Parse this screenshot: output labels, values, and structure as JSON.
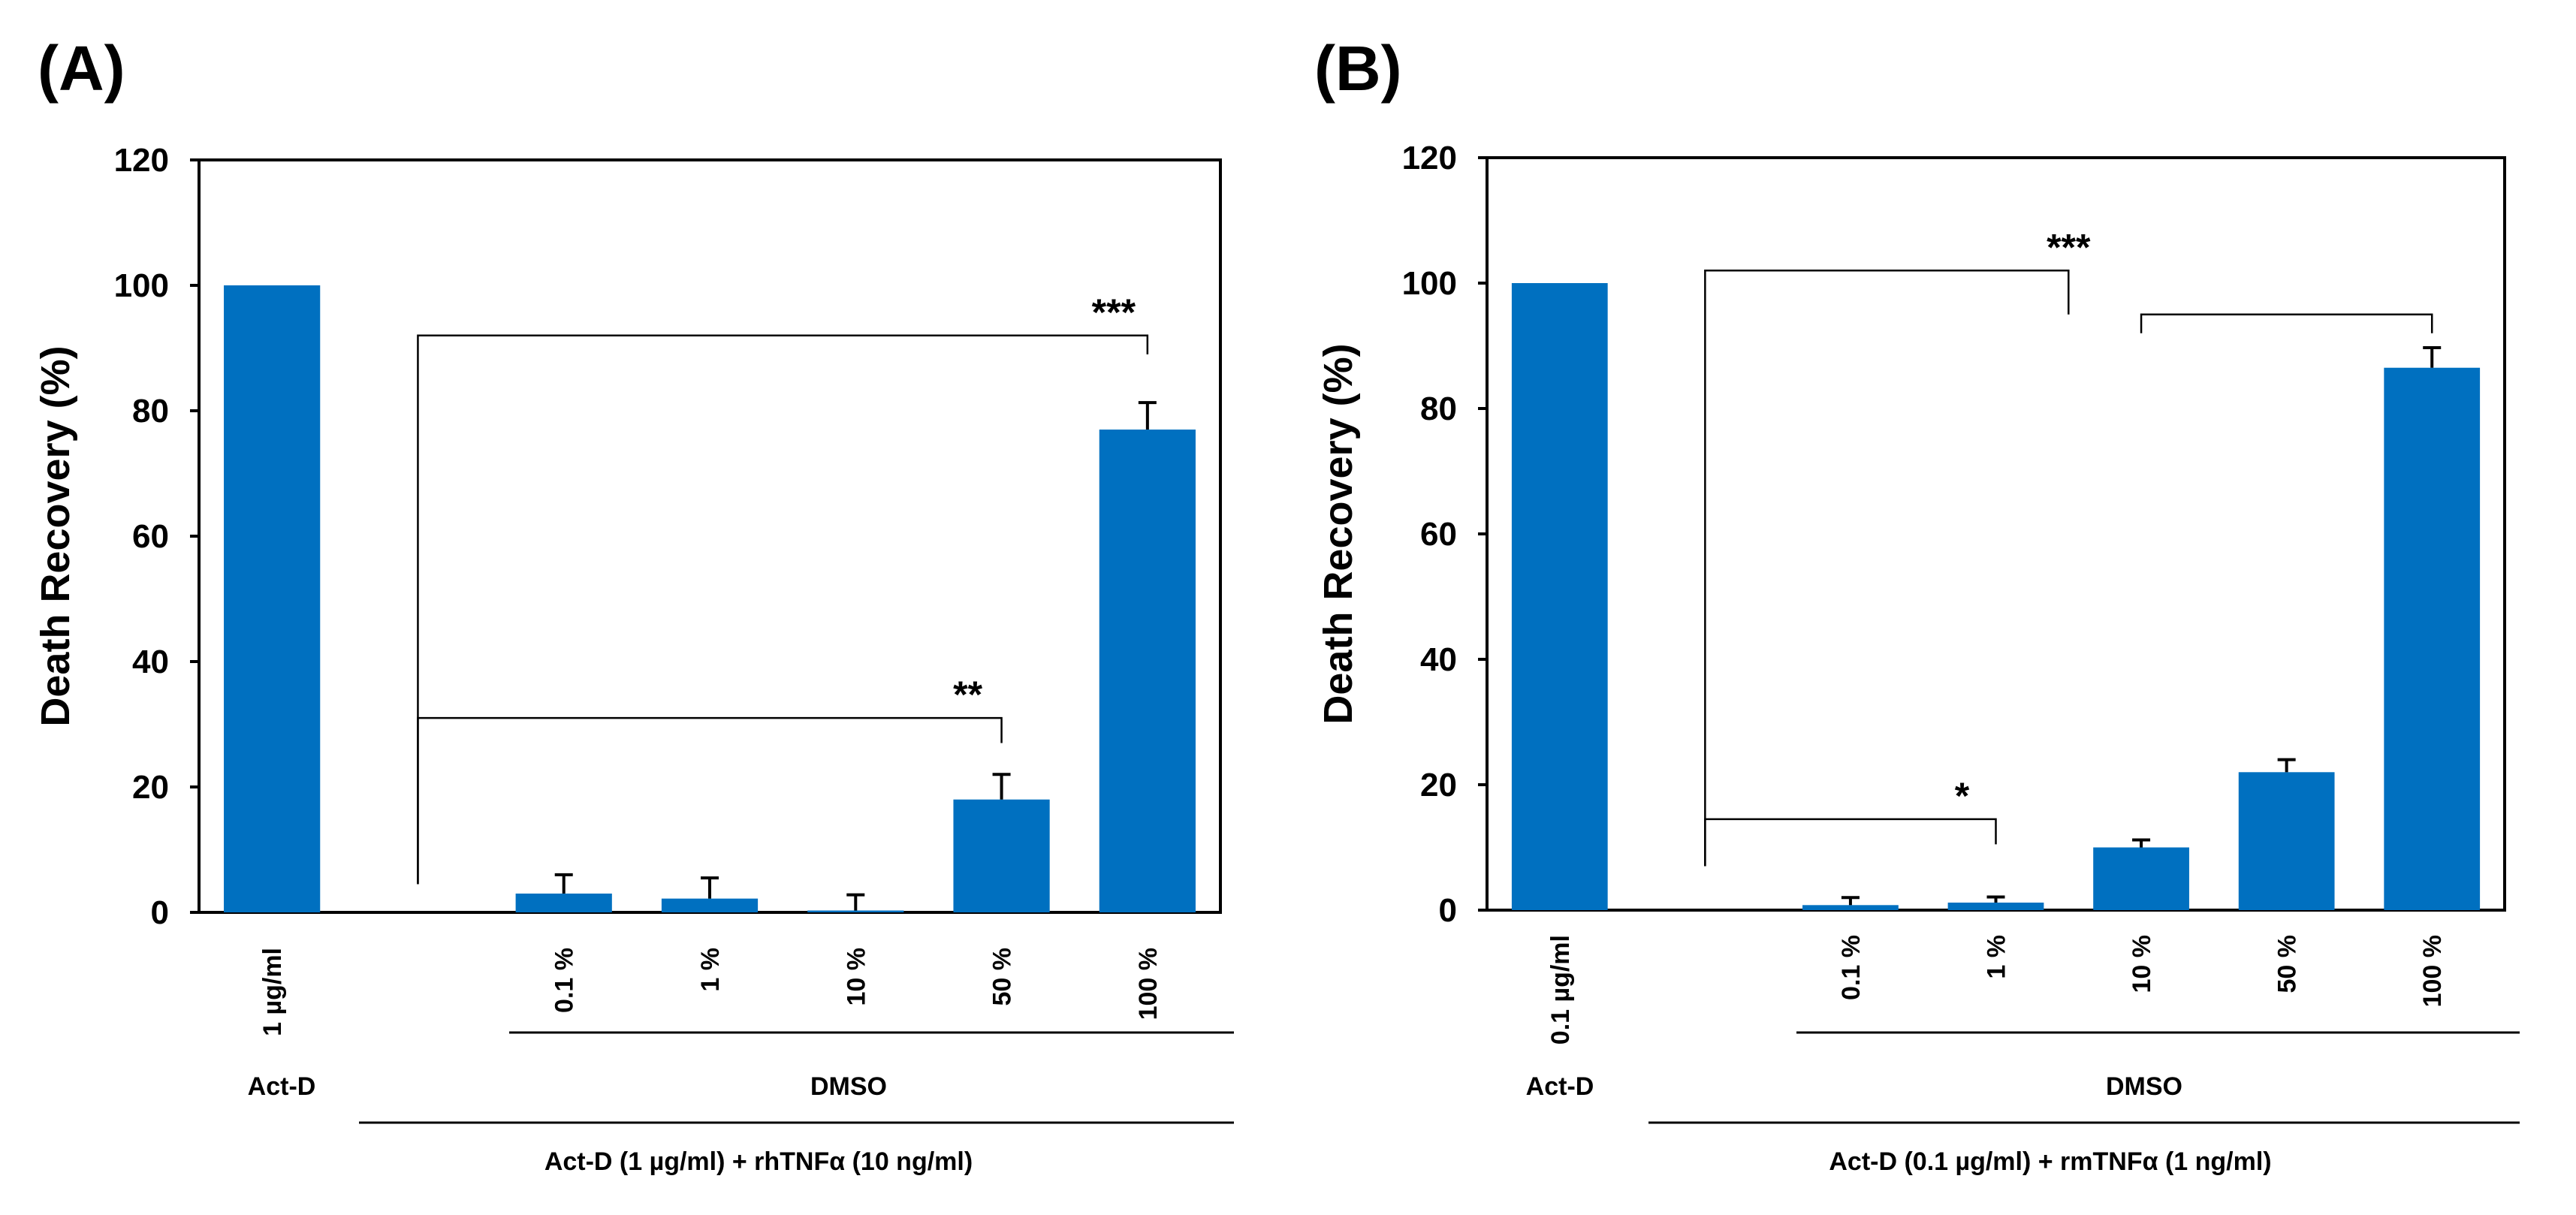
{
  "figure": {
    "bar_color": "#0070C0",
    "axis_color": "#000000"
  },
  "chart_data": [
    {
      "type": "bar",
      "panel_label": "(A)",
      "ylabel": "Death Recovery (%)",
      "ylim": [
        0,
        120
      ],
      "yticks": [
        "0",
        "20",
        "40",
        "60",
        "80",
        "100",
        "120"
      ],
      "categories": [
        "1 µg/ml",
        "",
        "0.1 %",
        "1 %",
        "10 %",
        "50 %",
        "100 %"
      ],
      "values": [
        100,
        0,
        3,
        2.2,
        0.3,
        18,
        77
      ],
      "errors": [
        0,
        0,
        3,
        3.3,
        2.5,
        4,
        4.3
      ],
      "groups": {
        "actd_label": "Act-D",
        "dmso_label": "DMSO",
        "treatment_label": "Act-D (1 µg/ml) + rhTNFα (10 ng/ml)"
      },
      "significance": [
        {
          "label": "***",
          "from": 1,
          "to": 6,
          "y": 92,
          "drop": 3
        },
        {
          "label": "**",
          "from": 1,
          "to": 5,
          "y": 31,
          "drop": 4
        }
      ]
    },
    {
      "type": "bar",
      "panel_label": "(B)",
      "ylabel": "Death Recovery (%)",
      "ylim": [
        0,
        120
      ],
      "yticks": [
        "0",
        "20",
        "40",
        "60",
        "80",
        "100",
        "120"
      ],
      "categories": [
        "0.1 µg/ml",
        "",
        "0.1 %",
        "1 %",
        "10 %",
        "50 %",
        "100 %"
      ],
      "values": [
        100,
        0,
        0.8,
        1.2,
        10,
        22,
        86.5
      ],
      "errors": [
        0,
        0,
        1.2,
        0.9,
        1.2,
        2,
        3.2
      ],
      "groups": {
        "actd_label": "Act-D",
        "dmso_label": "DMSO",
        "treatment_label": "Act-D (0.1 µg/ml) + rmTNFα (1 ng/ml)"
      },
      "significance": [
        {
          "label": "*",
          "from": 1,
          "to": 3,
          "y": 14.5,
          "drop": 4
        },
        {
          "label": "***",
          "from": 1,
          "to": 3.5,
          "y": 102,
          "drop": 7,
          "nested": {
            "from": 4,
            "to": 6,
            "y": 95,
            "drop": 3
          }
        }
      ]
    }
  ]
}
